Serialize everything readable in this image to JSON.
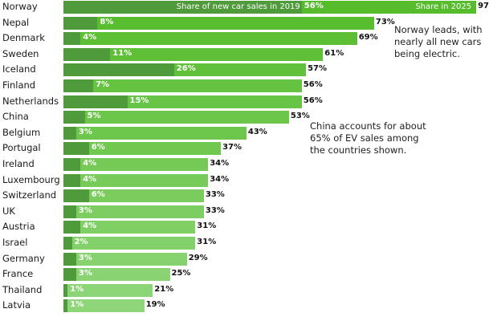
{
  "chart_data": {
    "type": "bar",
    "orientation": "horizontal",
    "legend": {
      "series_2019": "Share of new car sales in 2019",
      "series_2025": "Share in 2025"
    },
    "categories": [
      "Norway",
      "Nepal",
      "Denmark",
      "Sweden",
      "Iceland",
      "Finland",
      "Netherlands",
      "China",
      "Belgium",
      "Portugal",
      "Ireland",
      "Luxembourg",
      "Switzerland",
      "UK",
      "Austria",
      "Israel",
      "Germany",
      "France",
      "Thailand",
      "Latvia"
    ],
    "series": [
      {
        "name": "Share of new car sales in 2019",
        "values": [
          56,
          8,
          4,
          11,
          26,
          7,
          15,
          5,
          3,
          6,
          4,
          4,
          6,
          3,
          4,
          2,
          3,
          3,
          1,
          1
        ]
      },
      {
        "name": "Share in 2025",
        "values": [
          97,
          73,
          69,
          61,
          57,
          56,
          56,
          53,
          43,
          37,
          34,
          34,
          33,
          33,
          31,
          31,
          29,
          25,
          21,
          19
        ]
      }
    ],
    "labels_2019": [
      "56%",
      "8%",
      "4%",
      "11%",
      "26%",
      "7%",
      "15%",
      "5%",
      "3%",
      "6%",
      "4%",
      "4%",
      "6%",
      "3%",
      "4%",
      "2%",
      "3%",
      "3%",
      "1%",
      "1%"
    ],
    "labels_2025": [
      "97",
      "73%",
      "69%",
      "61%",
      "57%",
      "56%",
      "56%",
      "53%",
      "43%",
      "37%",
      "34%",
      "34%",
      "33%",
      "33%",
      "31%",
      "31%",
      "29%",
      "25%",
      "21%",
      "19%"
    ],
    "annotations": [
      {
        "target": "Nepal",
        "lines": [
          "Norway leads, with",
          "nearly all new cars",
          "being electric."
        ]
      },
      {
        "target": "China",
        "lines": [
          "China accounts for about",
          "65% of EV sales among",
          "the countries shown."
        ]
      }
    ],
    "colors": {
      "old": "#4f9a3a",
      "new_top": "#56bc2c",
      "new_bottom": "#8fd67a"
    }
  }
}
